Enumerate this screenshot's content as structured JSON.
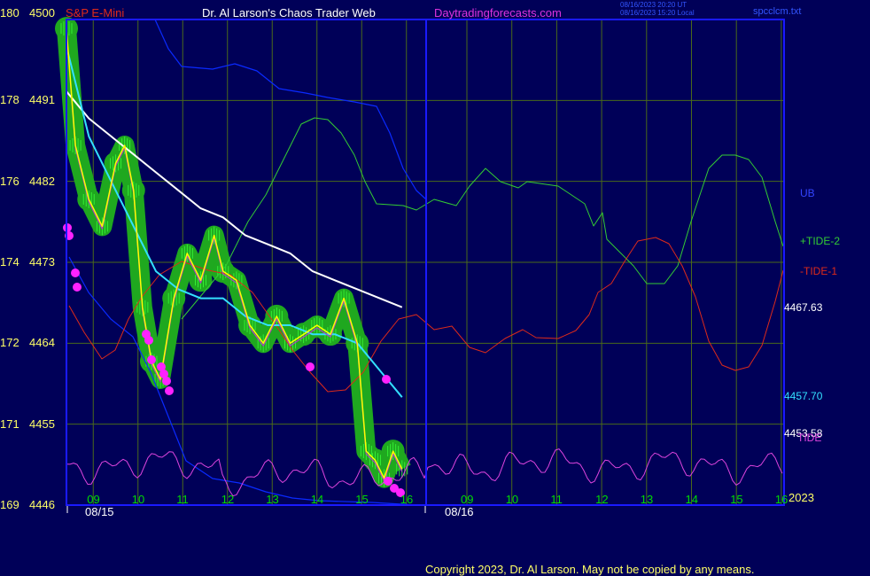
{
  "header": {
    "instrument": "S&P E-Mini",
    "title": "Dr. Al Larson's Chaos Trader Web",
    "site": "Daytradingforecasts.com",
    "stamp1": "08/16/2023 20:20 UT",
    "stamp2": "08/16/2023 15:20 Local",
    "file": "spcclcm.txt"
  },
  "footer": {
    "copyright": "Copyright 2023, Dr. Al Larson. May not be copied by any means."
  },
  "colors": {
    "background": "#000058",
    "frame": "#1a1aff",
    "grid": "#4a6a1a",
    "price": "#ffff00",
    "cyan": "#33e0ff",
    "white": "#ffffff",
    "blue": "#0a2aff",
    "tide2": "#33cc33",
    "tide1": "#dd2a1a",
    "tide": "#dd44dd",
    "glow": "#1fa81f",
    "dots": "#ff22ff",
    "tick": "#00dd00"
  },
  "chart_data": {
    "type": "line",
    "title": "S&P E-Mini",
    "ylim": [
      4446,
      4500
    ],
    "left_axis": [
      {
        "a": "180",
        "p": "4500"
      },
      {
        "a": "178",
        "p": "4491"
      },
      {
        "a": "176",
        "p": "4482"
      },
      {
        "a": "174",
        "p": "4473"
      },
      {
        "a": "172",
        "p": "4464"
      },
      {
        "a": "171",
        "p": "4455"
      },
      {
        "a": "169",
        "p": "4446"
      }
    ],
    "x_ticks_day1": [
      "09",
      "10",
      "11",
      "12",
      "13",
      "14",
      "15",
      "16"
    ],
    "x_ticks_day2": [
      "09",
      "10",
      "11",
      "12",
      "13",
      "14",
      "15",
      "16"
    ],
    "date_labels": [
      "08/15",
      "08/16"
    ],
    "year_label": "2023",
    "right_labels": [
      {
        "text": "UB",
        "color": "#3344ff"
      },
      {
        "text": "+TIDE-2",
        "color": "#33cc33"
      },
      {
        "text": "-TIDE-1",
        "color": "#dd2a1a"
      },
      {
        "text": "4467.63",
        "color": "#ffffff"
      },
      {
        "text": "4457.70",
        "color": "#33e0ff"
      },
      {
        "text": "4453.58",
        "color": "#ffffff"
      },
      {
        "text": "TIDE",
        "color": "#dd44dd"
      }
    ],
    "price_series": {
      "name": "price",
      "x": [
        8.5,
        8.7,
        9.0,
        9.3,
        9.6,
        9.8,
        10.0,
        10.2,
        10.4,
        10.6,
        10.9,
        11.2,
        11.5,
        11.8,
        12.0,
        12.3,
        12.6,
        12.9,
        13.2,
        13.5,
        13.8,
        14.1,
        14.4,
        14.7,
        15.0,
        15.2,
        15.4,
        15.6,
        15.8,
        16.0
      ],
      "y": [
        4499,
        4486,
        4480,
        4477,
        4484,
        4486,
        4481,
        4468,
        4462,
        4460,
        4469,
        4474,
        4471,
        4476,
        4472,
        4471,
        4466,
        4464,
        4467,
        4464,
        4465,
        4466,
        4465,
        4469,
        4464,
        4452,
        4451,
        4449,
        4452,
        4450
      ]
    },
    "ma_fast": {
      "name": "cyan average",
      "x": [
        8.5,
        9.0,
        9.5,
        10.0,
        10.5,
        11.0,
        11.5,
        12.0,
        12.5,
        13.0,
        13.5,
        14.0,
        14.5,
        15.0,
        15.5,
        16.0
      ],
      "y": [
        4497,
        4487,
        4482,
        4477,
        4472,
        4470,
        4469,
        4469,
        4467,
        4466,
        4466,
        4465,
        4465,
        4464,
        4461,
        4458
      ]
    },
    "ma_slow": {
      "name": "white average",
      "x": [
        8.5,
        9.0,
        9.5,
        10.0,
        10.5,
        11.0,
        11.5,
        12.0,
        12.5,
        13.0,
        13.5,
        14.0,
        14.5,
        15.0,
        15.5,
        16.0
      ],
      "y": [
        4492,
        4489,
        4487,
        4485,
        4483,
        4481,
        4479,
        4478,
        4476,
        4475,
        4474,
        4472,
        4471,
        4470,
        4469,
        4468
      ]
    }
  }
}
